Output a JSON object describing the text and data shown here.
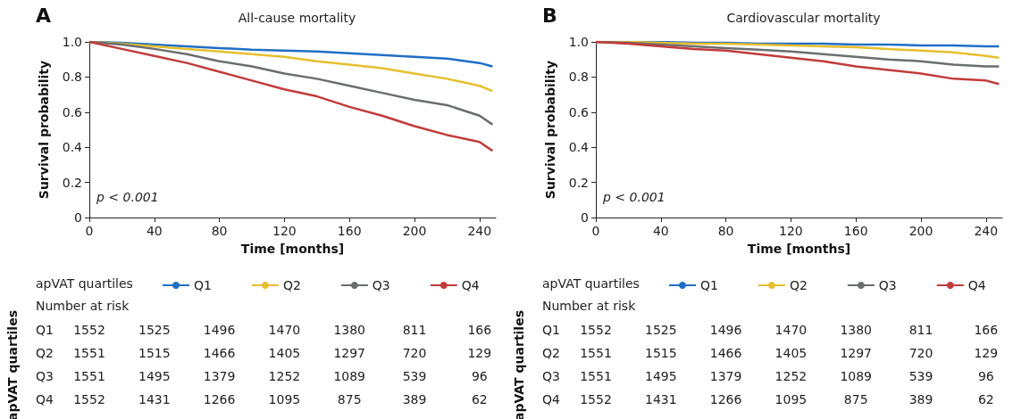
{
  "chart_data": [
    {
      "type": "line",
      "title": "All-cause mortality",
      "xlabel": "Time [months]",
      "ylabel": "Survival probability",
      "legend_title": "apVAT quartiles",
      "legend": "bottom",
      "xlim": [
        0,
        250
      ],
      "xticks": [
        0,
        40,
        80,
        120,
        160,
        200,
        240
      ],
      "ylim": [
        0,
        1
      ],
      "yticks": [
        0,
        {
          "value": 0.2,
          "label": "0.2"
        },
        {
          "value": 0.4,
          "label": "0.4"
        },
        {
          "value": 0.6,
          "label": "0.6"
        },
        {
          "value": 0.8,
          "label": "0.8"
        },
        {
          "value": 1,
          "label": "1.0"
        }
      ],
      "x": [
        0,
        20,
        40,
        60,
        80,
        100,
        120,
        140,
        160,
        180,
        200,
        220,
        240,
        248
      ],
      "series": [
        {
          "name": "Q1",
          "color": "#1f6fc5",
          "values": [
            1,
            0.995,
            0.985,
            0.975,
            0.965,
            0.955,
            0.95,
            0.945,
            0.935,
            0.925,
            0.915,
            0.905,
            0.88,
            0.86
          ]
        },
        {
          "name": "Q2",
          "color": "#e6bf2e",
          "values": [
            1,
            0.99,
            0.975,
            0.96,
            0.945,
            0.93,
            0.915,
            0.89,
            0.87,
            0.85,
            0.82,
            0.79,
            0.75,
            0.72
          ]
        },
        {
          "name": "Q3",
          "color": "#6b6e6e",
          "values": [
            1,
            0.985,
            0.96,
            0.93,
            0.89,
            0.86,
            0.82,
            0.79,
            0.75,
            0.71,
            0.67,
            0.64,
            0.58,
            0.53
          ]
        },
        {
          "name": "Q4",
          "color": "#c23b3b",
          "values": [
            1,
            0.96,
            0.92,
            0.88,
            0.83,
            0.78,
            0.73,
            0.69,
            0.63,
            0.58,
            0.52,
            0.47,
            0.43,
            0.38
          ]
        }
      ],
      "annotations": [
        "A",
        "p < 0.001",
        "Number at risk",
        "Q1 1552 1525 1496 1470 1380 811 166",
        "Q2 1551 1515 1466 1405 1297 720 129",
        "Q3 1551 1495 1379 1252 1089 539 96",
        "Q4 1552 1431 1266 1095 875 389 62"
      ]
    },
    {
      "type": "line",
      "title": "Cardiovascular mortality",
      "xlabel": "Time [months]",
      "ylabel": "Survival probability",
      "legend_title": "apVAT quartiles",
      "legend": "bottom",
      "xlim": [
        0,
        250
      ],
      "xticks": [
        0,
        40,
        80,
        120,
        160,
        200,
        240
      ],
      "ylim": [
        0,
        1
      ],
      "yticks": [
        0,
        {
          "value": 0.2,
          "label": "0.2"
        },
        {
          "value": 0.4,
          "label": "0.4"
        },
        {
          "value": 0.6,
          "label": "0.6"
        },
        {
          "value": 0.8,
          "label": "0.8"
        },
        {
          "value": 1,
          "label": "1.0"
        }
      ],
      "x": [
        0,
        20,
        40,
        60,
        80,
        100,
        120,
        140,
        160,
        180,
        200,
        220,
        240,
        248
      ],
      "series": [
        {
          "name": "Q1",
          "color": "#1f6fc5",
          "values": [
            1,
            1,
            1,
            0.995,
            0.995,
            0.99,
            0.99,
            0.99,
            0.985,
            0.985,
            0.98,
            0.98,
            0.975,
            0.975
          ]
        },
        {
          "name": "Q2",
          "color": "#e6bf2e",
          "values": [
            1,
            1,
            0.995,
            0.99,
            0.99,
            0.985,
            0.98,
            0.975,
            0.97,
            0.96,
            0.95,
            0.94,
            0.92,
            0.91
          ]
        },
        {
          "name": "Q3",
          "color": "#6b6e6e",
          "values": [
            1,
            0.995,
            0.985,
            0.975,
            0.965,
            0.955,
            0.945,
            0.93,
            0.915,
            0.9,
            0.89,
            0.87,
            0.86,
            0.86
          ]
        },
        {
          "name": "Q4",
          "color": "#c23b3b",
          "values": [
            1,
            0.99,
            0.975,
            0.96,
            0.95,
            0.93,
            0.91,
            0.89,
            0.86,
            0.84,
            0.82,
            0.79,
            0.78,
            0.76
          ]
        }
      ],
      "annotations": [
        "B",
        "p < 0.001",
        "Number at risk",
        "Q1 1552 1525 1496 1470 1380 811 166",
        "Q2 1551 1515 1466 1405 1297 720 129",
        "Q3 1551 1495 1379 1252 1089 539 96",
        "Q4 1552 1431 1266 1095 875 389 62"
      ]
    }
  ]
}
